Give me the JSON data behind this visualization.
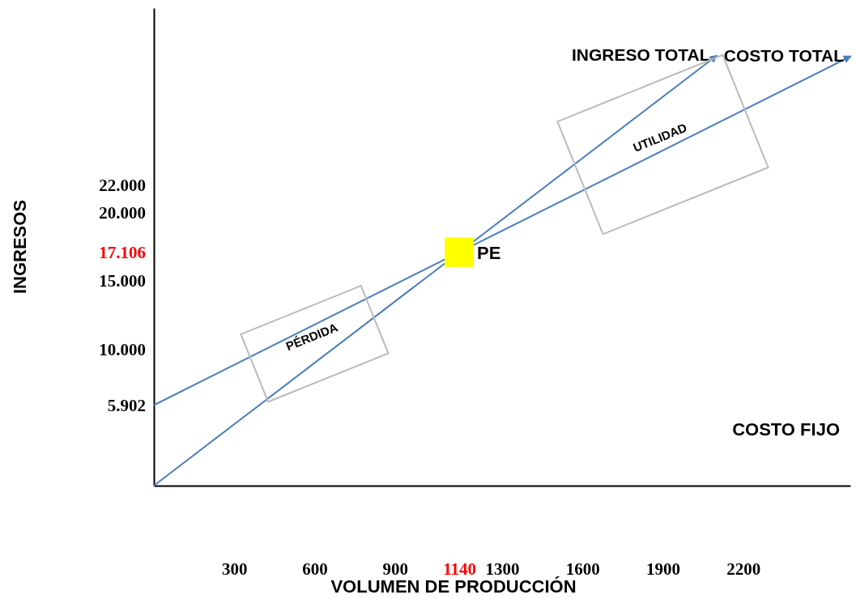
{
  "chart_data": {
    "type": "line",
    "xlabel": "VOLUMEN DE PRODUCCIÓN",
    "ylabel": "INGRESOS",
    "xlim": [
      0,
      2600
    ],
    "ylim": [
      0,
      35000
    ],
    "xticks": [
      300,
      600,
      900,
      1140,
      1300,
      1600,
      1900,
      2200
    ],
    "yticks": [
      {
        "value": 5902,
        "label": "5.902"
      },
      {
        "value": 10000,
        "label": "10.000"
      },
      {
        "value": 15000,
        "label": "15.000"
      },
      {
        "value": 17106,
        "label": "17.106"
      },
      {
        "value": 20000,
        "label": "20.000"
      },
      {
        "value": 22000,
        "label": "22.000"
      }
    ],
    "grid": false,
    "line_style": "solid",
    "series": [
      {
        "name": "INGRESO TOTAL",
        "color": "#4a7ebb",
        "x": [
          0,
          2100
        ],
        "values": [
          0,
          31500
        ]
      },
      {
        "name": "COSTO TOTAL",
        "color": "#4a7ebb",
        "x": [
          0,
          2600
        ],
        "values": [
          5902,
          31455
        ]
      },
      {
        "name": "PE",
        "type": "scatter",
        "marker": "square",
        "color": "#ffff00",
        "x": [
          1140
        ],
        "values": [
          17106
        ]
      }
    ],
    "annotations": [
      "PÉRDIDA",
      "UTILIDAD",
      "COSTO FIJO"
    ]
  }
}
